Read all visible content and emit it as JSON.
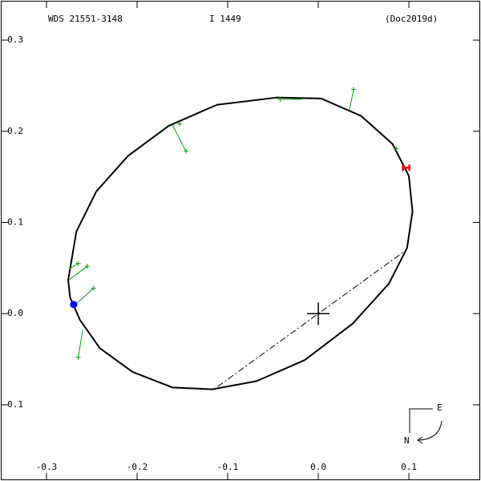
{
  "chart_data": {
    "type": "orbit",
    "title": "WDS 21551-3148",
    "subtitle": "I  1449",
    "reference": "(Doc2019d)",
    "xlim": [
      -0.3513,
      0.1796
    ],
    "ylim": [
      -0.1836,
      0.344
    ],
    "xticks": [
      -0.3,
      -0.2,
      -0.1,
      {
        "value": 0,
        "label": "0.0"
      },
      0.1
    ],
    "yticks": [
      0.3,
      0.2,
      0.1,
      {
        "value": 0,
        "label": "0.0"
      },
      -0.1
    ],
    "orbit": {
      "color": "#000000",
      "x": [
        -0.276,
        -0.267,
        -0.245,
        -0.21,
        -0.165,
        -0.112,
        -0.046,
        0.003,
        0.047,
        0.082,
        0.1,
        0.104,
        0.098,
        0.078,
        0.038,
        -0.015,
        -0.068,
        -0.117,
        -0.161,
        -0.205,
        -0.241,
        -0.263,
        -0.274
      ],
      "y": [
        0.037,
        0.09,
        0.134,
        0.173,
        0.206,
        0.229,
        0.237,
        0.236,
        0.217,
        0.186,
        0.151,
        0.112,
        0.072,
        0.033,
        -0.011,
        -0.051,
        -0.074,
        -0.083,
        -0.081,
        -0.064,
        -0.038,
        -0.007,
        0.018
      ]
    },
    "nodes": {
      "x": [
        -0.111,
        0.096
      ],
      "y": [
        -0.08,
        0.069
      ]
    },
    "observations": {
      "color": "#00a000",
      "x": [
        0.039,
        -0.042,
        -0.146,
        -0.153,
        0.086,
        -0.265,
        -0.255,
        -0.248,
        -0.265
      ],
      "y": [
        0.246,
        0.235,
        0.178,
        0.208,
        0.181,
        0.055,
        0.052,
        0.028,
        -0.048
      ],
      "fit_x": [
        0.034,
        -0.019,
        -0.161,
        -0.153,
        0.086,
        -0.275,
        -0.275,
        -0.269,
        -0.26
      ],
      "fit_y": [
        0.221,
        0.235,
        0.207,
        0.208,
        0.181,
        0.049,
        0.037,
        0.009,
        -0.018
      ]
    },
    "current": {
      "x": 0.097,
      "y": 0.16,
      "color": "#ff0000"
    },
    "periastron": {
      "x": -0.27,
      "y": 0.01,
      "color": "#0000ff"
    },
    "origin": {
      "x": 0,
      "y": 0
    },
    "compass": {
      "east": "E",
      "north": "N"
    }
  }
}
